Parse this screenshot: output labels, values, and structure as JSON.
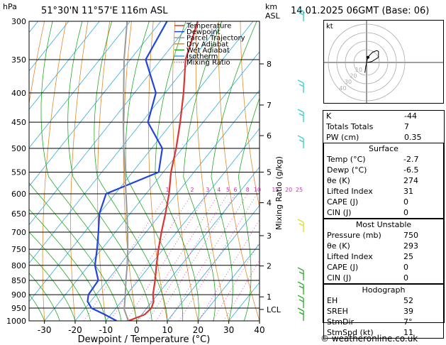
{
  "header": {
    "location": "51°30'N  11°57'E  116m  ASL",
    "datetime": "14.01.2025  06GMT  (Base: 06)",
    "hpa_label": "hPa",
    "km_label": "km",
    "asl_label": "ASL"
  },
  "axes": {
    "xlabel": "Dewpoint / Temperature (°C)",
    "ylabel_right": "Mixing Ratio (g/kg)",
    "pressure_ticks": [
      300,
      350,
      400,
      450,
      500,
      550,
      600,
      650,
      700,
      750,
      800,
      850,
      900,
      950,
      1000
    ],
    "temp_ticks": [
      -30,
      -20,
      -10,
      0,
      10,
      20,
      30,
      40
    ],
    "km_ticks": [
      {
        "label": "8",
        "p": 356
      },
      {
        "label": "7",
        "p": 420
      },
      {
        "label": "6",
        "p": 475
      },
      {
        "label": "5",
        "p": 550
      },
      {
        "label": "4",
        "p": 622
      },
      {
        "label": "3",
        "p": 710
      },
      {
        "label": "2",
        "p": 802
      },
      {
        "label": "1",
        "p": 908
      },
      {
        "label": "LCL",
        "p": 955
      }
    ],
    "mixing_ratio_labels": [
      "1",
      "2",
      "3",
      "4",
      "5",
      "6",
      "8",
      "10",
      "15",
      "20",
      "25"
    ]
  },
  "legend": [
    {
      "label": "Temperature",
      "color": "#dd3333",
      "style": "solid"
    },
    {
      "label": "Dewpoint",
      "color": "#2244dd",
      "style": "solid"
    },
    {
      "label": "Parcel Trajectory",
      "color": "#999999",
      "style": "solid"
    },
    {
      "label": "Dry Adiabat",
      "color": "#e08a2a",
      "style": "solid"
    },
    {
      "label": "Wet Adiabat",
      "color": "#22aa22",
      "style": "solid"
    },
    {
      "label": "Isotherm",
      "color": "#33aadd",
      "style": "solid"
    },
    {
      "label": "Mixing Ratio",
      "color": "#cc33aa",
      "style": "dotted"
    }
  ],
  "chart_data": {
    "type": "line",
    "title": "51°30'N  11°57'E  116m  ASL",
    "xlabel": "Dewpoint / Temperature (°C)",
    "ylabel": "hPa",
    "xlim": [
      -35,
      40
    ],
    "ylim": [
      1000,
      300
    ],
    "y_scale": "log",
    "skew": true,
    "series": [
      {
        "name": "Temperature",
        "color": "#dd3333",
        "points": [
          [
            1000,
            -2.7
          ],
          [
            975,
            1.0
          ],
          [
            950,
            1.5
          ],
          [
            925,
            0.5
          ],
          [
            900,
            -1.5
          ],
          [
            850,
            -4.5
          ],
          [
            800,
            -8.0
          ],
          [
            750,
            -11.5
          ],
          [
            700,
            -15.0
          ],
          [
            650,
            -18.5
          ],
          [
            600,
            -22.5
          ],
          [
            550,
            -27.5
          ],
          [
            500,
            -32.0
          ],
          [
            450,
            -37.5
          ],
          [
            400,
            -44.0
          ],
          [
            350,
            -52.0
          ],
          [
            300,
            -58.0
          ]
        ]
      },
      {
        "name": "Dewpoint",
        "color": "#2244dd",
        "points": [
          [
            1000,
            -6.5
          ],
          [
            975,
            -12.0
          ],
          [
            950,
            -18.0
          ],
          [
            925,
            -21.0
          ],
          [
            900,
            -22.5
          ],
          [
            850,
            -23.0
          ],
          [
            800,
            -28.0
          ],
          [
            750,
            -31.5
          ],
          [
            700,
            -35.5
          ],
          [
            650,
            -40.0
          ],
          [
            600,
            -43.0
          ],
          [
            550,
            -31.5
          ],
          [
            500,
            -36.5
          ],
          [
            450,
            -48.0
          ],
          [
            400,
            -53.0
          ],
          [
            350,
            -65.0
          ],
          [
            300,
            -68.0
          ]
        ]
      },
      {
        "name": "Parcel Trajectory",
        "color": "#999999",
        "points": [
          [
            1000,
            -2.7
          ],
          [
            955,
            -7.0
          ],
          [
            900,
            -10.5
          ],
          [
            850,
            -14.0
          ],
          [
            800,
            -17.5
          ],
          [
            750,
            -21.5
          ],
          [
            700,
            -26.0
          ],
          [
            650,
            -31.0
          ],
          [
            600,
            -36.5
          ],
          [
            550,
            -42.5
          ],
          [
            500,
            -49.0
          ],
          [
            450,
            -56.0
          ],
          [
            400,
            -63.5
          ],
          [
            350,
            -72.0
          ],
          [
            300,
            -81.0
          ]
        ]
      }
    ],
    "wind_barbs": [
      {
        "p": 1000,
        "color": "#22aa22"
      },
      {
        "p": 950,
        "color": "#22aa22"
      },
      {
        "p": 900,
        "color": "#22aa22"
      },
      {
        "p": 850,
        "color": "#22aa22"
      },
      {
        "p": 700,
        "color": "#dddd22"
      },
      {
        "p": 500,
        "color": "#33cccc"
      },
      {
        "p": 450,
        "color": "#33cccc"
      },
      {
        "p": 400,
        "color": "#33cccc"
      },
      {
        "p": 300,
        "color": "#33cccc"
      }
    ]
  },
  "hodograph": {
    "label": "kt",
    "ring_labels": [
      "10",
      "20",
      "30",
      "40"
    ],
    "trace": [
      [
        0,
        0
      ],
      [
        0.5,
        2.0
      ],
      [
        1.5,
        4.0
      ],
      [
        3.5,
        6.0
      ],
      [
        6.0,
        7.0
      ],
      [
        7.0,
        6.5
      ],
      [
        7.0,
        3.0
      ],
      [
        3.0,
        0.5
      ],
      [
        0,
        0
      ],
      [
        -0.5,
        -2.5
      ],
      [
        -1.0,
        -6.0
      ]
    ],
    "storm_motion": [
      0.8,
      3.0
    ]
  },
  "indices": {
    "rows": [
      {
        "label": "K",
        "value": "-44"
      },
      {
        "label": "Totals Totals",
        "value": "7"
      },
      {
        "label": "PW (cm)",
        "value": "0.35"
      }
    ]
  },
  "surface": {
    "title": "Surface",
    "rows": [
      {
        "label": "Temp (°C)",
        "value": "-2.7"
      },
      {
        "label": "Dewp (°C)",
        "value": "-6.5"
      },
      {
        "label": "θe (K)",
        "value": "274"
      },
      {
        "label": "Lifted Index",
        "value": "31"
      },
      {
        "label": "CAPE (J)",
        "value": "0"
      },
      {
        "label": "CIN (J)",
        "value": "0"
      }
    ]
  },
  "most_unstable": {
    "title": "Most Unstable",
    "rows": [
      {
        "label": "Pressure (mb)",
        "value": "750"
      },
      {
        "label": "θe (K)",
        "value": "293"
      },
      {
        "label": "Lifted Index",
        "value": "25"
      },
      {
        "label": "CAPE (J)",
        "value": "0"
      },
      {
        "label": "CIN (J)",
        "value": "0"
      }
    ]
  },
  "hodograph_box": {
    "title": "Hodograph",
    "rows": [
      {
        "label": "EH",
        "value": "52"
      },
      {
        "label": "SREH",
        "value": "39"
      },
      {
        "label": "StmDir",
        "value": "7°"
      },
      {
        "label": "StmSpd (kt)",
        "value": "11"
      }
    ]
  },
  "footer": {
    "copyright": "© weatheronline.co.uk"
  }
}
